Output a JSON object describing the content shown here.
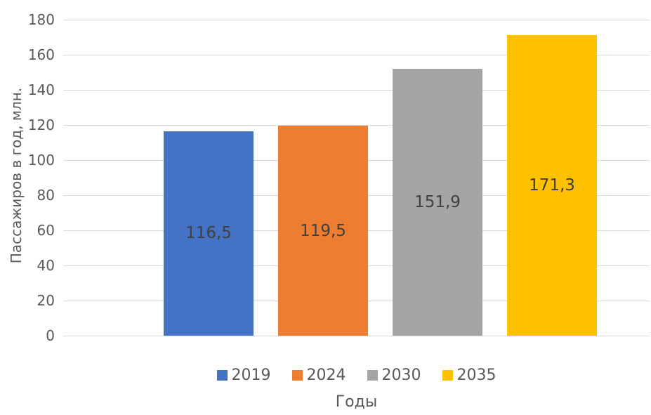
{
  "chart_data": {
    "type": "bar",
    "title": "",
    "categories": [
      "2019",
      "2024",
      "2030",
      "2035"
    ],
    "series": [
      {
        "name": "2019",
        "value": 116.5,
        "label": "116,5",
        "color": "#4472C4"
      },
      {
        "name": "2024",
        "value": 119.5,
        "label": "119,5",
        "color": "#ED7D31"
      },
      {
        "name": "2030",
        "value": 151.9,
        "label": "151,9",
        "color": "#A5A5A5"
      },
      {
        "name": "2035",
        "value": 171.3,
        "label": "171,3",
        "color": "#FFC000"
      }
    ],
    "xlabel": "Годы",
    "ylabel": "Пассажиров в год, млн.",
    "ylim": [
      0,
      180
    ],
    "ytick_step": 20,
    "yticks": [
      0,
      20,
      40,
      60,
      80,
      100,
      120,
      140,
      160,
      180
    ],
    "grid": true,
    "legend_position": "bottom",
    "data_label_position": "inside-center",
    "colors": {
      "gridline": "#D9D9D9",
      "axis_text": "#595959",
      "data_label": "#404040",
      "background": "#FFFFFF"
    }
  }
}
